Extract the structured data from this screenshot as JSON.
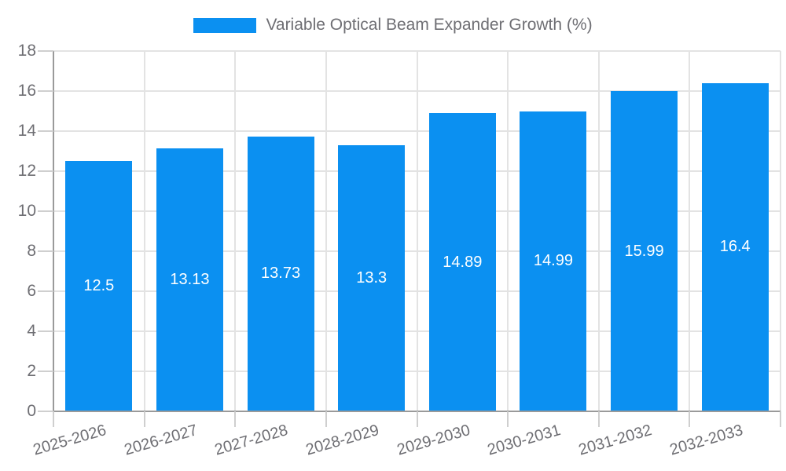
{
  "chart_data": {
    "type": "bar",
    "title": "",
    "legend_label": "Variable Optical Beam Expander Growth (%)",
    "legend_position": "top-center",
    "categories": [
      "2025-2026",
      "2026-2027",
      "2027-2028",
      "2028-2029",
      "2029-2030",
      "2030-2031",
      "2031-2032",
      "2032-2033"
    ],
    "values": [
      12.5,
      13.13,
      13.73,
      13.3,
      14.89,
      14.99,
      15.99,
      16.4
    ],
    "value_labels": [
      "12.5",
      "13.13",
      "13.73",
      "13.3",
      "14.89",
      "14.99",
      "15.99",
      "16.4"
    ],
    "xlabel": "",
    "ylabel": "",
    "ylim": [
      0,
      18
    ],
    "ytick_step": 2,
    "ytick_labels": [
      "0",
      "2",
      "4",
      "6",
      "8",
      "10",
      "12",
      "14",
      "16",
      "18"
    ],
    "grid": true,
    "colors": {
      "bar": "#0b90f1",
      "value_label": "#ffffff",
      "axis_text": "#6e6e73",
      "gridline": "#e3e3e3",
      "axis_line": "#9a9a9a",
      "tick": "#cfcfcf",
      "background": "#ffffff"
    }
  }
}
